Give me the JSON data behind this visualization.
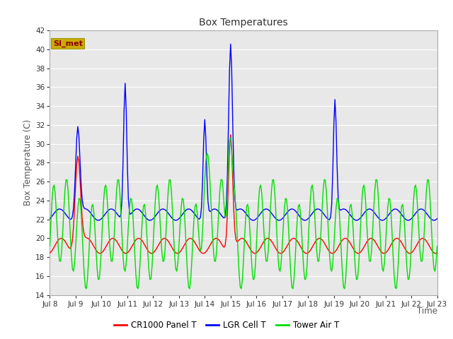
{
  "title": "Box Temperatures",
  "ylabel": "Box Temperature (C)",
  "xlabel": "Time",
  "ylim": [
    14,
    42
  ],
  "yticks": [
    14,
    16,
    18,
    20,
    22,
    24,
    26,
    28,
    30,
    32,
    34,
    36,
    38,
    40,
    42
  ],
  "bg_color": "#e8e8e8",
  "grid_color": "#ffffff",
  "series": {
    "CR1000 Panel T": {
      "color": "#ff0000"
    },
    "LGR Cell T": {
      "color": "#0000ff"
    },
    "Tower Air T": {
      "color": "#00dd00"
    }
  },
  "watermark": "SI_met",
  "watermark_color": "#8b0000",
  "watermark_bg": "#ccaa00",
  "x_tick_labels": [
    "Jul 8",
    "Jul 9",
    "Jul 10",
    "Jul 11",
    "Jul 12",
    "Jul 13",
    "Jul 14",
    "Jul 15",
    "Jul 16",
    "Jul 17",
    "Jul 18",
    "Jul 19",
    "Jul 20",
    "Jul 21",
    "Jul 22",
    "Jul 23"
  ],
  "x_tick_positions": [
    0,
    24,
    48,
    72,
    96,
    120,
    144,
    168,
    192,
    216,
    240,
    264,
    288,
    312,
    336,
    360
  ],
  "figsize": [
    6.4,
    4.8
  ],
  "dpi": 100
}
